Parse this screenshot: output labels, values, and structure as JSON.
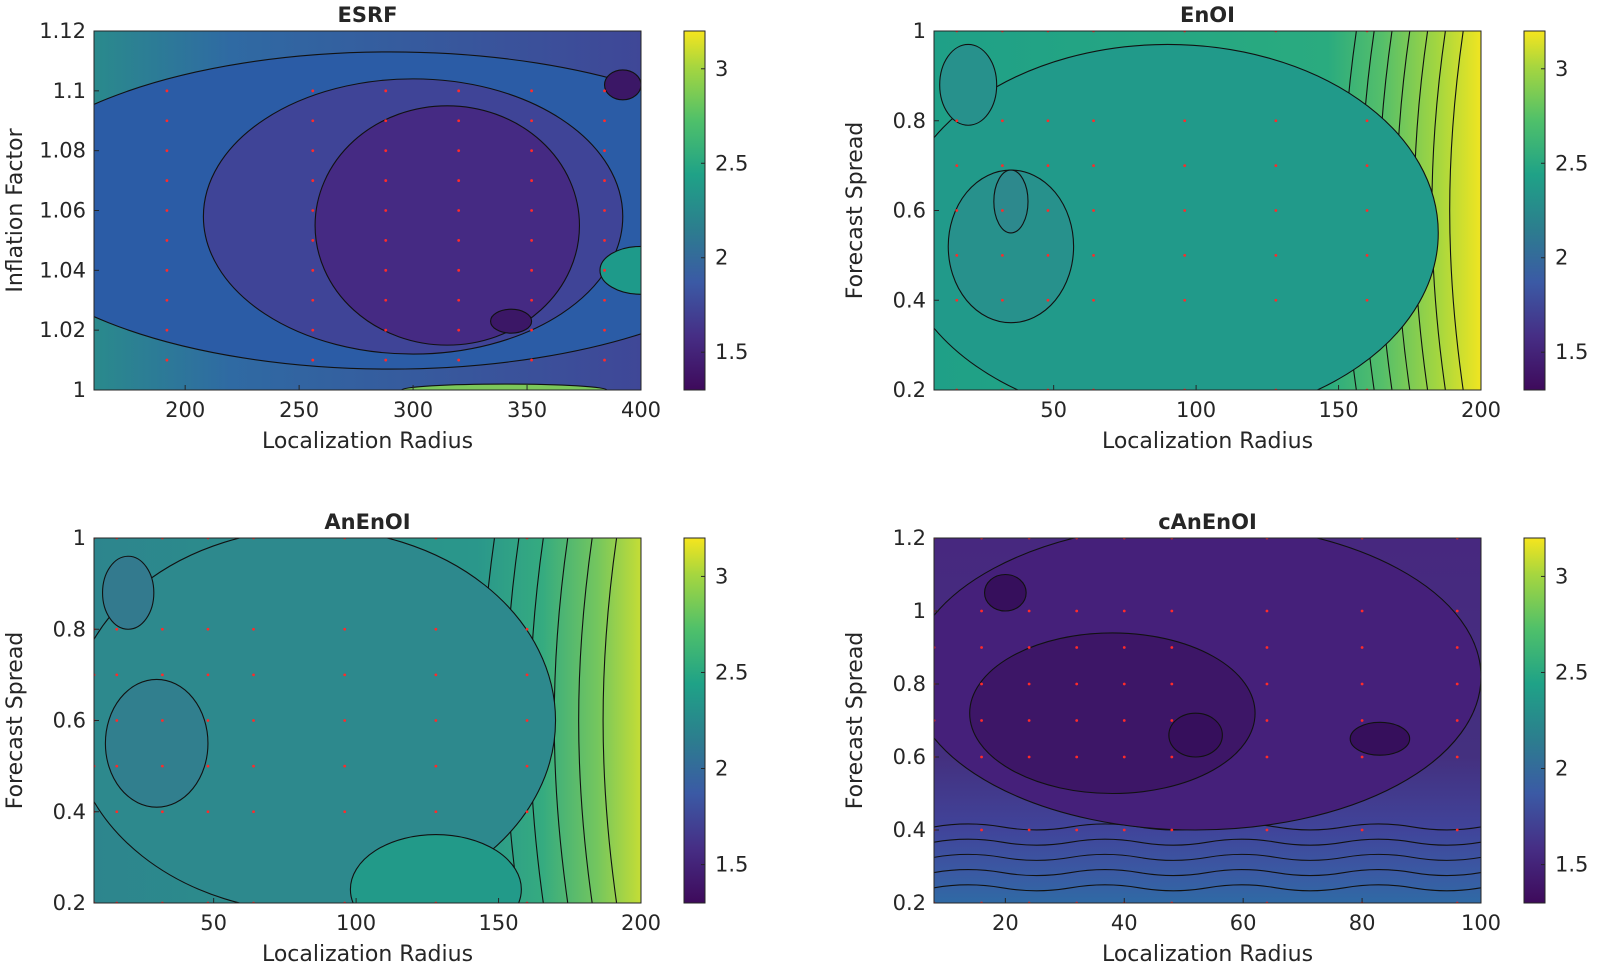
{
  "chart_data": [
    {
      "type": "contour",
      "title": "ESRF",
      "xlabel": "Localization Radius",
      "ylabel": "Inflation Factor",
      "xlim": [
        160,
        400
      ],
      "ylim": [
        1,
        1.12
      ],
      "xticks": [
        200,
        250,
        300,
        350,
        400
      ],
      "xtick_labels": [
        "200",
        "250",
        "300",
        "350",
        "400"
      ],
      "yticks": [
        1,
        1.02,
        1.04,
        1.06,
        1.08,
        1.1,
        1.12
      ],
      "ytick_labels": [
        "1",
        "1.02",
        "1.04",
        "1.06",
        "1.08",
        "1.1",
        "1.12"
      ],
      "clim": [
        1.3,
        3.2
      ],
      "colorbar_ticks": [
        1.5,
        2,
        2.5,
        3
      ],
      "colorbar_tick_labels": [
        "1.5",
        "2",
        "2.5",
        "3"
      ],
      "colormap": "parula",
      "sample_points": {
        "x": [
          192,
          256,
          288,
          320,
          352,
          384
        ],
        "y": [
          1.01,
          1.02,
          1.03,
          1.04,
          1.05,
          1.06,
          1.07,
          1.08,
          1.09,
          1.1
        ]
      },
      "regions": [
        {
          "level": 1.8,
          "color": "#2b5ca6",
          "shape": "ellipse",
          "cx": 290,
          "cy": 1.06,
          "rx": 175,
          "ry": 0.053
        },
        {
          "level": 1.6,
          "color": "#3f4497",
          "shape": "ellipse",
          "cx": 300,
          "cy": 1.058,
          "rx": 92,
          "ry": 0.046
        },
        {
          "level": 1.45,
          "color": "#452a83",
          "shape": "ellipse",
          "cx": 315,
          "cy": 1.055,
          "rx": 58,
          "ry": 0.04
        },
        {
          "level": 1.35,
          "color": "#3b1766",
          "shape": "ellipse",
          "cx": 343,
          "cy": 1.023,
          "rx": 9,
          "ry": 0.004
        },
        {
          "level": 1.35,
          "color": "#3b1766",
          "shape": "ellipse",
          "cx": 392,
          "cy": 1.102,
          "rx": 8,
          "ry": 0.005
        },
        {
          "level": 2.4,
          "color": "#1e9a8a",
          "shape": "ellipse",
          "cx": 400,
          "cy": 1.04,
          "rx": 18,
          "ry": 0.008
        },
        {
          "level": 2.8,
          "color": "#7cc85a",
          "shape": "ellipse",
          "cx": 340,
          "cy": 1.0,
          "rx": 45,
          "ry": 0.002
        }
      ]
    },
    {
      "type": "contour",
      "title": "EnOI",
      "xlabel": "Localization Radius",
      "ylabel": "Forecast Spread",
      "xlim": [
        8,
        200
      ],
      "ylim": [
        0.2,
        1
      ],
      "xticks": [
        50,
        100,
        150,
        200
      ],
      "xtick_labels": [
        "50",
        "100",
        "150",
        "200"
      ],
      "yticks": [
        0.2,
        0.4,
        0.6,
        0.8,
        1
      ],
      "ytick_labels": [
        "0.2",
        "0.4",
        "0.6",
        "0.8",
        "1"
      ],
      "clim": [
        1.3,
        3.2
      ],
      "colorbar_ticks": [
        1.5,
        2,
        2.5,
        3
      ],
      "colorbar_tick_labels": [
        "1.5",
        "2",
        "2.5",
        "3"
      ],
      "colormap": "parula",
      "sample_points": {
        "x": [
          16,
          32,
          48,
          64,
          96,
          128,
          160
        ],
        "y": [
          0.2,
          0.4,
          0.5,
          0.6,
          0.7,
          0.8,
          1
        ]
      },
      "regions": [
        {
          "level": 2.15,
          "color": "#219a8a",
          "shape": "ellipse",
          "cx": 90,
          "cy": 0.55,
          "rx": 95,
          "ry": 0.42
        },
        {
          "level": 2.05,
          "color": "#27918c",
          "shape": "ellipse",
          "cx": 35,
          "cy": 0.52,
          "rx": 22,
          "ry": 0.17
        },
        {
          "level": 2.05,
          "color": "#27918c",
          "shape": "ellipse",
          "cx": 20,
          "cy": 0.88,
          "rx": 10,
          "ry": 0.09
        },
        {
          "level": 1.95,
          "color": "#2d898d",
          "shape": "ellipse",
          "cx": 35,
          "cy": 0.62,
          "rx": 6,
          "ry": 0.07
        }
      ],
      "gradient": {
        "axis": "x",
        "from": 150,
        "to": 200,
        "levels": [
          2.3,
          2.45,
          2.6,
          2.75,
          2.9,
          3.05,
          3.2
        ]
      }
    },
    {
      "type": "contour",
      "title": "AnEnOI",
      "xlabel": "Localization Radius",
      "ylabel": "Forecast Spread",
      "xlim": [
        8,
        200
      ],
      "ylim": [
        0.2,
        1
      ],
      "xticks": [
        50,
        100,
        150,
        200
      ],
      "xtick_labels": [
        "50",
        "100",
        "150",
        "200"
      ],
      "yticks": [
        0.2,
        0.4,
        0.6,
        0.8,
        1
      ],
      "ytick_labels": [
        "0.2",
        "0.4",
        "0.6",
        "0.8",
        "1"
      ],
      "clim": [
        1.3,
        3.2
      ],
      "colorbar_ticks": [
        1.5,
        2,
        2.5,
        3
      ],
      "colorbar_tick_labels": [
        "1.5",
        "2",
        "2.5",
        "3"
      ],
      "colormap": "parula",
      "sample_points": {
        "x": [
          8,
          16,
          32,
          48,
          64,
          96,
          128,
          160
        ],
        "y": [
          0.2,
          0.4,
          0.5,
          0.6,
          0.7,
          0.8,
          1
        ]
      },
      "regions": [
        {
          "level": 2.0,
          "color": "#2d898d",
          "shape": "ellipse",
          "cx": 85,
          "cy": 0.6,
          "rx": 85,
          "ry": 0.42
        },
        {
          "level": 1.9,
          "color": "#317f8e",
          "shape": "ellipse",
          "cx": 30,
          "cy": 0.55,
          "rx": 18,
          "ry": 0.14
        },
        {
          "level": 1.85,
          "color": "#337a8e",
          "shape": "ellipse",
          "cx": 20,
          "cy": 0.88,
          "rx": 9,
          "ry": 0.08
        },
        {
          "level": 2.15,
          "color": "#229a89",
          "shape": "ellipse",
          "cx": 128,
          "cy": 0.23,
          "rx": 30,
          "ry": 0.12
        }
      ],
      "gradient": {
        "axis": "x",
        "from": 140,
        "to": 200,
        "levels": [
          2.3,
          2.45,
          2.6,
          2.75,
          2.9,
          3.05
        ]
      }
    },
    {
      "type": "contour",
      "title": "cAnEnOI",
      "xlabel": "Localization Radius",
      "ylabel": "Forecast Spread",
      "xlim": [
        8,
        100
      ],
      "ylim": [
        0.2,
        1.2
      ],
      "xticks": [
        20,
        40,
        60,
        80,
        100
      ],
      "xtick_labels": [
        "20",
        "40",
        "60",
        "80",
        "100"
      ],
      "yticks": [
        0.2,
        0.4,
        0.6,
        0.8,
        1,
        1.2
      ],
      "ytick_labels": [
        "0.2",
        "0.4",
        "0.6",
        "0.8",
        "1",
        "1.2"
      ],
      "clim": [
        1.3,
        3.2
      ],
      "colorbar_ticks": [
        1.5,
        2,
        2.5,
        3
      ],
      "colorbar_tick_labels": [
        "1.5",
        "2",
        "2.5",
        "3"
      ],
      "colormap": "parula",
      "sample_points": {
        "x": [
          8,
          16,
          24,
          32,
          40,
          48,
          64,
          80,
          96
        ],
        "y": [
          0.2,
          0.4,
          0.6,
          0.7,
          0.8,
          0.9,
          1.0,
          1.2
        ]
      },
      "regions": [
        {
          "level": 1.45,
          "color": "#45207a",
          "shape": "ellipse",
          "cx": 52,
          "cy": 0.82,
          "rx": 48,
          "ry": 0.42
        },
        {
          "level": 1.4,
          "color": "#3d1667",
          "shape": "ellipse",
          "cx": 38,
          "cy": 0.72,
          "rx": 24,
          "ry": 0.22
        },
        {
          "level": 1.35,
          "color": "#360f5c",
          "shape": "ellipse",
          "cx": 20,
          "cy": 1.05,
          "rx": 3.5,
          "ry": 0.05
        },
        {
          "level": 1.35,
          "color": "#360f5c",
          "shape": "ellipse",
          "cx": 83,
          "cy": 0.65,
          "rx": 5,
          "ry": 0.045
        },
        {
          "level": 1.35,
          "color": "#360f5c",
          "shape": "ellipse",
          "cx": 52,
          "cy": 0.66,
          "rx": 4.5,
          "ry": 0.06
        }
      ],
      "gradient": {
        "axis": "y-bottom",
        "from": 0.2,
        "to": 0.45,
        "levels": [
          1.9,
          1.8,
          1.7,
          1.6,
          1.5
        ]
      }
    }
  ]
}
